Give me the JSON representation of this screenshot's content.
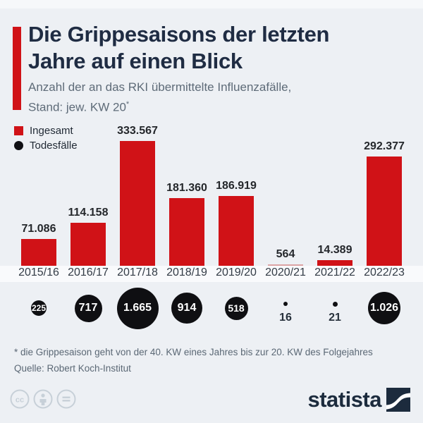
{
  "header": {
    "title_line1": "Die Grippesaisons der letzten",
    "title_line2": "Jahre auf einen Blick",
    "subtitle_line1": "Anzahl der an das RKI übermittelte Influenzafälle,",
    "subtitle_line2": "Stand: jew. KW 20",
    "subtitle_marker": "*"
  },
  "legend": {
    "cases_label": "Ingesamt",
    "deaths_label": "Todesfälle"
  },
  "chart_data": {
    "type": "bar",
    "title": "Die Grippesaisons der letzten Jahre auf einen Blick",
    "subtitle": "Anzahl der an das RKI übermittelte Influenzafälle, Stand: jew. KW 20*",
    "categories": [
      "2015/16",
      "2016/17",
      "2017/18",
      "2018/19",
      "2019/20",
      "2020/21",
      "2021/22",
      "2022/23"
    ],
    "series": [
      {
        "name": "Ingesamt",
        "type": "bar",
        "values": [
          71086,
          114158,
          333567,
          181360,
          186919,
          564,
          14389,
          292377
        ],
        "labels": [
          "71.086",
          "114.158",
          "333.567",
          "181.360",
          "186.919",
          "564",
          "14.389",
          "292.377"
        ]
      },
      {
        "name": "Todesfälle",
        "type": "bubble",
        "values": [
          225,
          717,
          1665,
          914,
          518,
          16,
          21,
          1026
        ],
        "labels": [
          "225",
          "717",
          "1.665",
          "914",
          "518",
          "16",
          "21",
          "1.026"
        ]
      }
    ],
    "xlabel": "",
    "ylabel": "",
    "ylim": [
      0,
      333567
    ],
    "grid": false,
    "legend_position": "top-left"
  },
  "footer": {
    "footnote": "* die Grippesaison geht von der 40. KW eines Jahres bis zur 20. KW des Folgejahres",
    "source": "Quelle: Robert Koch-Institut",
    "brand": "statista"
  },
  "colors": {
    "accent_red": "#d01217",
    "pale_red": "#dca3a4",
    "bubble_black": "#0f0f12",
    "title_navy": "#1f2c43",
    "background": "#edf0f4"
  }
}
